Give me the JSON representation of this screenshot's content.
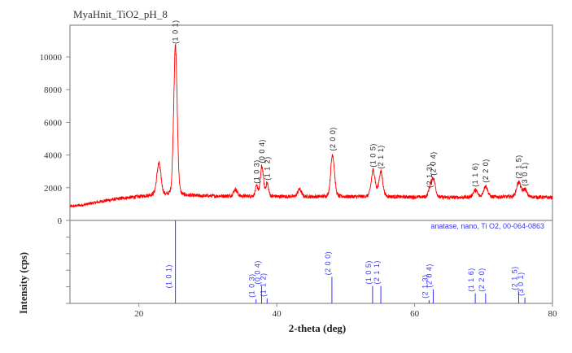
{
  "chart_data": {
    "type": "line",
    "title": "MyaHnit_TiO2_pH_8",
    "xlabel": "2-theta (deg)",
    "ylabel": "Intensity (cps)",
    "xlim": [
      10,
      80
    ],
    "ylim": [
      0,
      11600
    ],
    "x_ticks": [
      20,
      40,
      60,
      80
    ],
    "y_ticks": [
      0,
      2000,
      4000,
      6000,
      8000,
      10000
    ],
    "grid": false,
    "series": [
      {
        "name": "MyaHnit_TiO2_pH_8",
        "color": "#ff0000",
        "baseline": [
          {
            "x": 10,
            "y": 850
          },
          {
            "x": 12,
            "y": 950
          },
          {
            "x": 15,
            "y": 1200
          },
          {
            "x": 18,
            "y": 1380
          },
          {
            "x": 20,
            "y": 1450
          },
          {
            "x": 22,
            "y": 1550
          },
          {
            "x": 28,
            "y": 1500
          },
          {
            "x": 35,
            "y": 1480
          },
          {
            "x": 45,
            "y": 1450
          },
          {
            "x": 55,
            "y": 1450
          },
          {
            "x": 65,
            "y": 1400
          },
          {
            "x": 75,
            "y": 1450
          },
          {
            "x": 80,
            "y": 1400
          }
        ],
        "peaks": [
          {
            "x": 22.9,
            "y": 3450,
            "width": 0.45,
            "label": ""
          },
          {
            "x": 25.3,
            "y": 10600,
            "width": 0.38,
            "label": "(1 0 1)"
          },
          {
            "x": 34.0,
            "y": 1900,
            "width": 0.4,
            "label": ""
          },
          {
            "x": 37.1,
            "y": 2050,
            "width": 0.3,
            "label": "(1 0 3)"
          },
          {
            "x": 37.85,
            "y": 3300,
            "width": 0.32,
            "label": "(0 0 4)"
          },
          {
            "x": 38.6,
            "y": 2250,
            "width": 0.3,
            "label": "(1 1 2)"
          },
          {
            "x": 43.3,
            "y": 1900,
            "width": 0.4,
            "label": ""
          },
          {
            "x": 48.1,
            "y": 4050,
            "width": 0.4,
            "label": "(2 0 0)"
          },
          {
            "x": 54.0,
            "y": 3050,
            "width": 0.42,
            "label": "(1 0 5)"
          },
          {
            "x": 55.1,
            "y": 2950,
            "width": 0.42,
            "label": "(2 1 1)"
          },
          {
            "x": 62.2,
            "y": 1800,
            "width": 0.35,
            "label": "(2 1 3)"
          },
          {
            "x": 62.7,
            "y": 2550,
            "width": 0.45,
            "label": "(2 0 4)"
          },
          {
            "x": 68.8,
            "y": 1850,
            "width": 0.45,
            "label": "(1 1 6)"
          },
          {
            "x": 70.3,
            "y": 2100,
            "width": 0.45,
            "label": "(2 2 0)"
          },
          {
            "x": 75.1,
            "y": 2350,
            "width": 0.45,
            "label": "(2 1 5)"
          },
          {
            "x": 76.0,
            "y": 1900,
            "width": 0.4,
            "label": "(3 0 1)"
          }
        ]
      }
    ],
    "reference": {
      "name": "anatase, nano, Ti O2, 00-064-0863",
      "color": "#3333ff",
      "ylim_relative": [
        0,
        100
      ],
      "sticks": [
        {
          "x": 25.3,
          "rel": 100,
          "label": "(1 0 1)"
        },
        {
          "x": 37.0,
          "rel": 5,
          "label": "(1 0 3)"
        },
        {
          "x": 37.8,
          "rel": 21,
          "label": "(0 0 4)"
        },
        {
          "x": 38.6,
          "rel": 6,
          "label": "(1 1 2)"
        },
        {
          "x": 48.0,
          "rel": 32,
          "label": "(2 0 0)"
        },
        {
          "x": 53.9,
          "rel": 21,
          "label": "(1 0 5)"
        },
        {
          "x": 55.1,
          "rel": 21,
          "label": "(2 1 1)"
        },
        {
          "x": 62.1,
          "rel": 4,
          "label": "(2 1 3)"
        },
        {
          "x": 62.7,
          "rel": 17,
          "label": "(2 0 4)"
        },
        {
          "x": 68.8,
          "rel": 12,
          "label": "(1 1 6)"
        },
        {
          "x": 70.3,
          "rel": 12,
          "label": "(2 2 0)"
        },
        {
          "x": 75.1,
          "rel": 14,
          "label": "(2 1 5)"
        },
        {
          "x": 76.0,
          "rel": 7,
          "label": "(3 0 1)"
        }
      ]
    }
  }
}
